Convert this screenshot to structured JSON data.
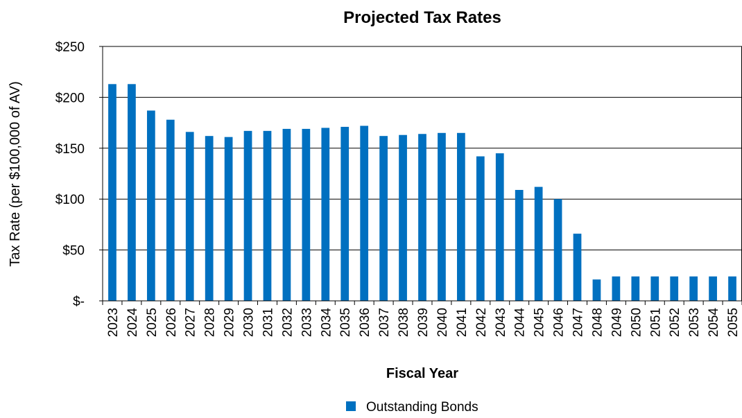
{
  "chart_data": {
    "type": "bar",
    "title": "Projected Tax Rates",
    "xlabel": "Fiscal Year",
    "ylabel": "Tax Rate (per $100,000 of AV)",
    "ylim": [
      0,
      250
    ],
    "y_ticks": [
      "$-",
      "$50",
      "$100",
      "$150",
      "$200",
      "$250"
    ],
    "grid": true,
    "legend_position": "bottom",
    "categories": [
      "2023",
      "2024",
      "2025",
      "2026",
      "2027",
      "2028",
      "2029",
      "2030",
      "2031",
      "2032",
      "2033",
      "2034",
      "2035",
      "2036",
      "2037",
      "2038",
      "2039",
      "2040",
      "2041",
      "2042",
      "2043",
      "2044",
      "2045",
      "2046",
      "2047",
      "2048",
      "2049",
      "2050",
      "2051",
      "2052",
      "2053",
      "2054",
      "2055"
    ],
    "series": [
      {
        "name": "Outstanding Bonds",
        "color": "#0070C0",
        "values": [
          213,
          213,
          187,
          178,
          166,
          162,
          161,
          167,
          167,
          169,
          169,
          170,
          171,
          172,
          162,
          163,
          164,
          165,
          165,
          142,
          145,
          109,
          112,
          100,
          66,
          21,
          24,
          24,
          24,
          24,
          24,
          24,
          24
        ]
      }
    ]
  }
}
